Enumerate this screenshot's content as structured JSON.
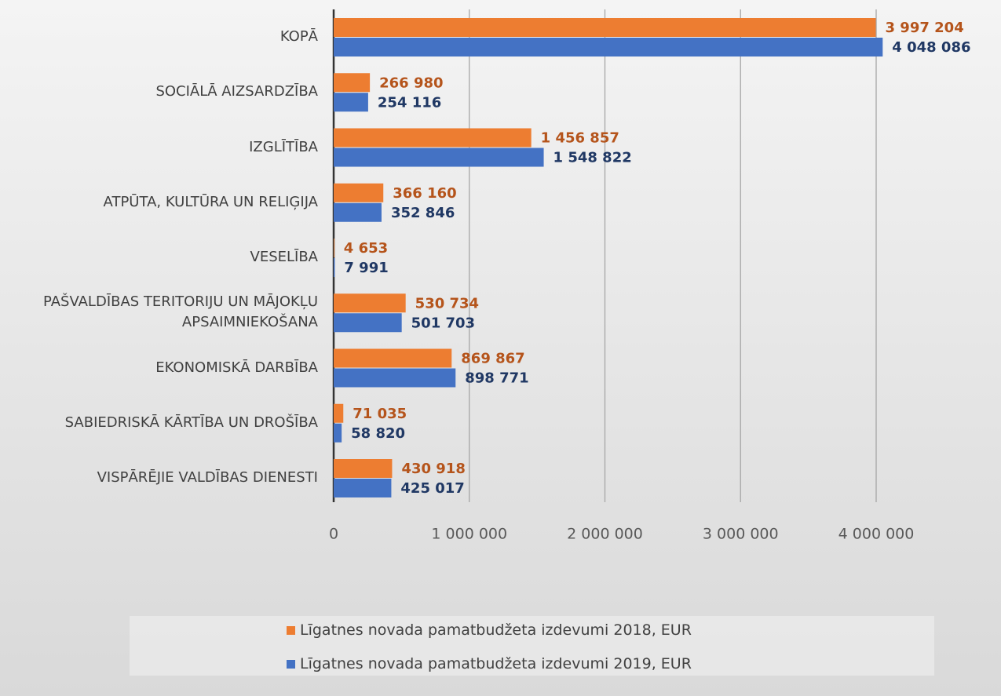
{
  "chart_data": {
    "type": "bar",
    "orientation": "horizontal",
    "categories": [
      "KOPĀ",
      "SOCIĀLĀ AIZSARDZĪBA",
      "IZGLĪTĪBA",
      "ATPŪTA, KULTŪRA UN RELIĢIJA",
      "VESELĪBA",
      "PAŠVALDĪBAS TERITORIJU UN MĀJOKĻU APSAIMNIEKOŠANA",
      "EKONOMISKĀ DARBĪBA",
      "SABIEDRISKĀ KĀRTĪBA UN DROŠĪBA",
      "VISPĀRĒJIE VALDĪBAS DIENESTI"
    ],
    "series": [
      {
        "name": "Līgatnes novada pamatbudžeta izdevumi 2018, EUR",
        "color": "#ed7d31",
        "label_color": "#b5541b",
        "values": [
          3997204,
          266980,
          1456857,
          366160,
          4653,
          530734,
          869867,
          71035,
          430918
        ],
        "value_labels": [
          "3 997 204",
          "266 980",
          "1 456 857",
          "366 160",
          "4 653",
          "530 734",
          "869 867",
          "71 035",
          "430 918"
        ]
      },
      {
        "name": "Līgatnes novada pamatbudžeta izdevumi 2019, EUR",
        "color": "#4472c4",
        "label_color": "#203864",
        "values": [
          4048086,
          254116,
          1548822,
          352846,
          7991,
          501703,
          898771,
          58820,
          425017
        ],
        "value_labels": [
          "4 048 086",
          "254 116",
          "1 548 822",
          "352 846",
          "7 991",
          "501 703",
          "898 771",
          "58 820",
          "425 017"
        ]
      }
    ],
    "xlim": [
      0,
      4500000
    ],
    "xticks": [
      0,
      {
        "value": 1000000,
        "label": "1 000 000"
      },
      {
        "value": 2000000,
        "label": "2 000 000"
      },
      {
        "value": 3000000,
        "label": "3 000 000"
      },
      {
        "value": 4000000,
        "label": "4 000 000"
      }
    ],
    "grid": true,
    "legend": "bottom"
  }
}
